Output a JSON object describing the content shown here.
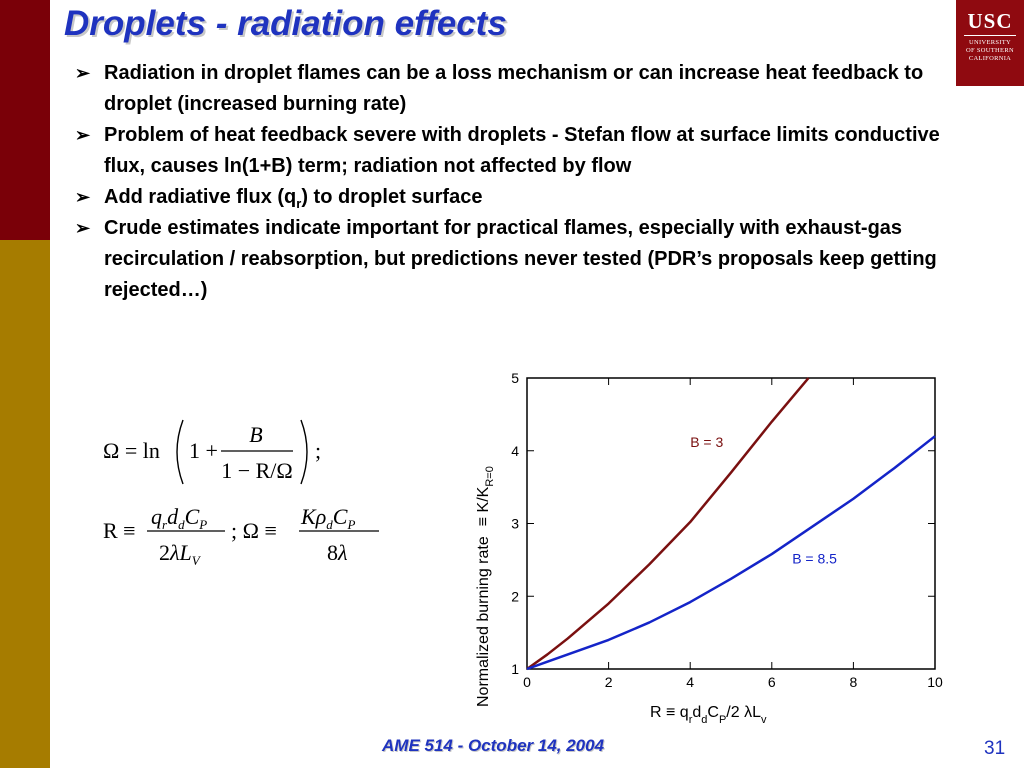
{
  "slide": {
    "title": "Droplets - radiation effects",
    "bullets": [
      {
        "text": "Radiation in droplet flames can be a loss mechanism or can increase heat feedback to droplet (increased burning rate)"
      },
      {
        "text": "Problem of heat feedback severe with droplets - Stefan flow at surface limits conductive flux, causes ln(1+B) term; radiation not affected by flow"
      },
      {
        "pre": "Add radiative flux (q",
        "sub": "r",
        "post": ") to droplet surface"
      },
      {
        "text": "Crude estimates indicate important for practical flames, especially with exhaust-gas recirculation / reabsorption, but predictions never tested (PDR’s proposals keep getting rejected…)"
      }
    ],
    "footer": "AME 514 - October 14, 2004",
    "page_number": "31",
    "bullet_glyph": "➢"
  },
  "logo": {
    "abbr": "USC",
    "line1": "UNIVERSITY",
    "line2": "OF SOUTHERN",
    "line3": "CALIFORNIA"
  },
  "equations": {
    "omega": {
      "lhs": "Ω = ln",
      "one": "1 +",
      "num": "B",
      "den": "1 − R/Ω",
      "tail": ";"
    },
    "r_def": {
      "lhs": "R ≡",
      "sep": "; Ω ≡"
    }
  },
  "colors": {
    "title": "#1f33bf",
    "bar_top": "#7a0008",
    "bar_bottom": "#a67c00",
    "logo": "#8f0a10"
  },
  "chart_data": {
    "type": "line",
    "xlim": [
      0,
      10
    ],
    "ylim": [
      1,
      5
    ],
    "xticks": [
      0,
      2,
      4,
      6,
      8,
      10
    ],
    "yticks": [
      1,
      2,
      3,
      4,
      5
    ],
    "ylabel": {
      "main": "Normalized burning rate",
      "mid": "≡ K/K",
      "sub": "R=0"
    },
    "xlabel": {
      "r": "R ≡ q",
      "s1": "r",
      "d": "d",
      "s2": "d",
      "c": "C",
      "s3": "P",
      "l": "/2 λL",
      "s4": "v"
    },
    "series": [
      {
        "name": "B = 3",
        "color": "#7a1010",
        "x": [
          0,
          0.5,
          1,
          2,
          3,
          4,
          5,
          6,
          6.9
        ],
        "y": [
          1,
          1.2,
          1.42,
          1.9,
          2.44,
          3.02,
          3.7,
          4.4,
          5.0
        ]
      },
      {
        "name": "B = 8.5",
        "color": "#1424c8",
        "x": [
          0,
          0.5,
          1,
          2,
          3,
          4,
          5,
          6,
          7,
          8,
          9,
          10
        ],
        "y": [
          1,
          1.1,
          1.2,
          1.4,
          1.64,
          1.92,
          2.24,
          2.58,
          2.96,
          3.34,
          3.76,
          4.2
        ]
      }
    ],
    "annotations": [
      {
        "text": "B = 3",
        "x": 4.0,
        "y": 4.05,
        "color": "#7a1010"
      },
      {
        "text": "B = 8.5",
        "x": 6.5,
        "y": 2.45,
        "color": "#1424c8"
      }
    ]
  }
}
